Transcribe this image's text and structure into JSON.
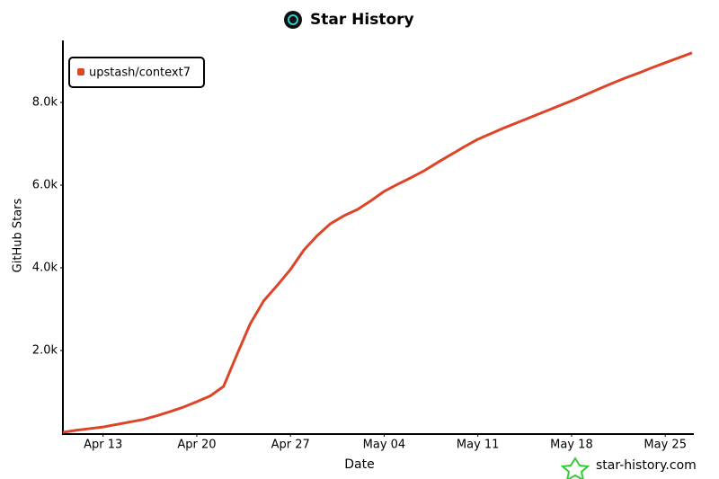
{
  "chart_data": {
    "type": "line",
    "title": "Star History",
    "x_label": "Date",
    "y_label": "GitHub Stars",
    "x": [
      "Apr 10",
      "Apr 11",
      "Apr 12",
      "Apr 13",
      "Apr 14",
      "Apr 15",
      "Apr 16",
      "Apr 17",
      "Apr 18",
      "Apr 19",
      "Apr 20",
      "Apr 21",
      "Apr 22",
      "Apr 23",
      "Apr 24",
      "Apr 25",
      "Apr 26",
      "Apr 27",
      "Apr 28",
      "Apr 29",
      "Apr 30",
      "May 01",
      "May 02",
      "May 03",
      "May 04",
      "May 05",
      "May 06",
      "May 07",
      "May 08",
      "May 09",
      "May 10",
      "May 11",
      "May 12",
      "May 13",
      "May 14",
      "May 15",
      "May 16",
      "May 17",
      "May 18",
      "May 19",
      "May 20",
      "May 21",
      "May 22",
      "May 23",
      "May 24",
      "May 25",
      "May 26",
      "May 27"
    ],
    "series": [
      {
        "name": "upstash/context7",
        "color": "#dd4528",
        "values": [
          20,
          70,
          110,
          150,
          210,
          270,
          330,
          420,
          520,
          630,
          760,
          900,
          1130,
          1900,
          2650,
          3200,
          3570,
          3960,
          4430,
          4780,
          5070,
          5260,
          5410,
          5620,
          5850,
          6020,
          6180,
          6350,
          6550,
          6740,
          6930,
          7110,
          7250,
          7390,
          7520,
          7650,
          7780,
          7910,
          8040,
          8180,
          8320,
          8460,
          8590,
          8710,
          8840,
          8960,
          9080,
          9200
        ]
      }
    ],
    "xticks": [
      "Apr 13",
      "Apr 20",
      "Apr 27",
      "May 04",
      "May 11",
      "May 18",
      "May 25"
    ],
    "ylim": [
      0,
      9500
    ],
    "yticks": [
      {
        "value": 2000,
        "label": "2.0k"
      },
      {
        "value": 4000,
        "label": "4.0k"
      },
      {
        "value": 6000,
        "label": "6.0k"
      },
      {
        "value": 8000,
        "label": "8.0k"
      }
    ],
    "grid": false,
    "legend": "upper left",
    "watermark": "star-history.com"
  }
}
